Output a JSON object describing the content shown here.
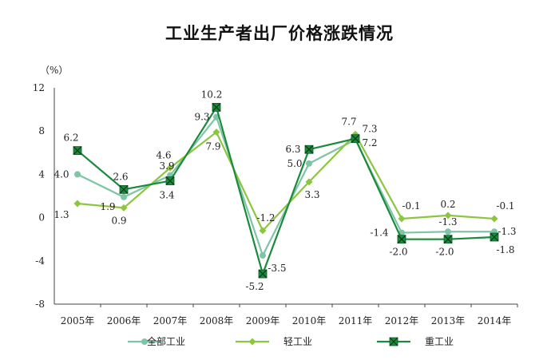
{
  "title": "工业生产者出厂价格涨跌情况",
  "chart_data": {
    "type": "line",
    "title": "工业生产者出厂价格涨跌情况",
    "ylabel": "（%）",
    "xlabel": "",
    "categories": [
      "2005年",
      "2006年",
      "2007年",
      "2008年",
      "2009年",
      "2010年",
      "2011年",
      "2012年",
      "2013年",
      "2014年"
    ],
    "ylim": [
      -8,
      12
    ],
    "yticks": [
      -8,
      -4,
      0,
      4,
      8,
      12
    ],
    "grid": false,
    "legend_position": "bottom",
    "series": [
      {
        "name": "全部工业",
        "color": "#7ec4a6",
        "marker": "circle",
        "values": [
          4.0,
          1.9,
          3.9,
          9.3,
          -3.5,
          5.0,
          7.2,
          -1.4,
          -1.3,
          -1.3
        ],
        "labels": [
          "4.0",
          "1.9",
          "3.9",
          "9.3",
          "-3.5",
          "5.0",
          "7.2",
          "-1.4",
          "-1.3",
          "-1.3"
        ]
      },
      {
        "name": "轻工业",
        "color": "#8cc63f",
        "marker": "diamond",
        "values": [
          1.3,
          0.9,
          4.6,
          7.9,
          -1.2,
          3.3,
          7.7,
          -0.1,
          0.2,
          -0.1
        ],
        "labels": [
          "1.3",
          "0.9",
          "4.6",
          "7.9",
          "-1.2",
          "3.3",
          "7.7",
          "-0.1",
          "0.2",
          "-0.1"
        ]
      },
      {
        "name": "重工业",
        "color": "#1a8a3c",
        "marker": "xsquare",
        "values": [
          6.2,
          2.6,
          3.4,
          10.2,
          -5.2,
          6.3,
          7.3,
          -2.0,
          -2.0,
          -1.8
        ],
        "labels": [
          "6.2",
          "2.6",
          "3.4",
          "10.2",
          "-5.2",
          "6.3",
          "7.3",
          "-2.0",
          "-2.0",
          "-1.8"
        ]
      }
    ]
  }
}
